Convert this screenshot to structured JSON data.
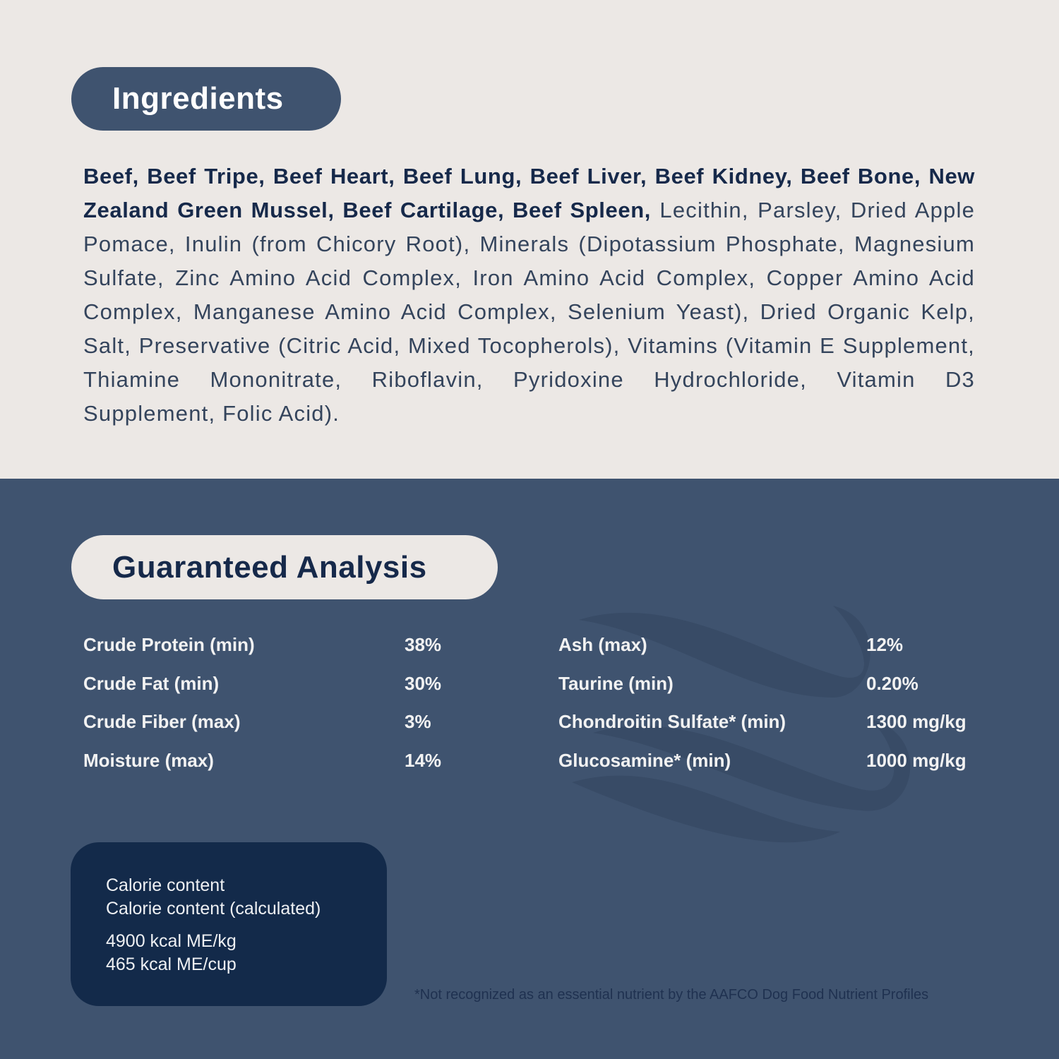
{
  "ingredients": {
    "title": "Ingredients",
    "bold_text": "Beef, Beef Tripe, Beef Heart, Beef Lung, Beef Liver, Beef Kidney, Beef Bone, New Zealand Green Mussel, Beef Cartilage, Beef Spleen,",
    "regular_text": " Lecithin, Parsley, Dried Apple Pomace, Inulin (from Chicory Root), Minerals (Dipotassium Phosphate, Magnesium Sulfate, Zinc Amino Acid Complex, Iron Amino Acid Complex, Copper Amino Acid Complex, Manganese Amino Acid Complex, Selenium Yeast), Dried Organic Kelp, Salt, Preservative (Citric Acid, Mixed Tocopherols), Vitamins (Vitamin E Supplement, Thiamine Mononitrate, Riboflavin, Pyridoxine Hydrochloride, Vitamin D3 Supplement, Folic Acid)."
  },
  "analysis": {
    "title": "Guaranteed Analysis",
    "left": [
      {
        "label": "Crude Protein (min)",
        "value": "38%"
      },
      {
        "label": "Crude Fat (min)",
        "value": "30%"
      },
      {
        "label": "Crude Fiber (max)",
        "value": "3%"
      },
      {
        "label": "Moisture (max)",
        "value": "14%"
      }
    ],
    "right": [
      {
        "label": "Ash (max)",
        "value": "12%"
      },
      {
        "label": "Taurine (min)",
        "value": "0.20%"
      },
      {
        "label": "Chondroitin Sulfate* (min)",
        "value": "1300 mg/kg"
      },
      {
        "label": "Glucosamine* (min)",
        "value": "1000 mg/kg"
      }
    ]
  },
  "calorie": {
    "line1": "Calorie content",
    "line2": "Calorie content (calculated)",
    "value1": "4900 kcal ME/kg",
    "value2": "465 kcal ME/cup"
  },
  "footnote": "*Not recognized as an essential nutrient by the AAFCO Dog Food Nutrient Profiles",
  "colors": {
    "cream": "#ece8e5",
    "slate_blue": "#3f536f",
    "navy": "#132a4a"
  }
}
